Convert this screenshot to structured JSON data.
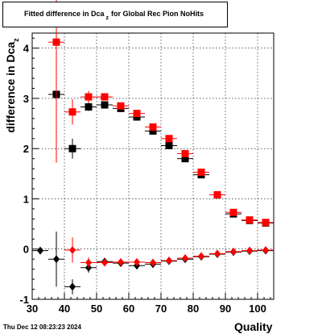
{
  "title": {
    "main": "Fitted difference in Dca",
    "sub": "z",
    "rest": "for Global Rec Pion NoHits"
  },
  "datestamp": "Thu Dec 12 08:23:23 2024",
  "axes": {
    "xlabel": "Quality",
    "ylabel_main": "difference in Dca",
    "ylabel_sub": "z"
  },
  "colors": {
    "red": "#ff0000",
    "black": "#000000"
  },
  "chart_data": {
    "type": "scatter",
    "xlim": [
      30,
      105
    ],
    "ylim": [
      -1,
      4.3
    ],
    "xticks": [
      30,
      40,
      50,
      60,
      70,
      80,
      90,
      100
    ],
    "yticks": [
      -1,
      0,
      1,
      2,
      3,
      4
    ],
    "grid": true,
    "series": [
      {
        "marker": "square",
        "color": "#000000",
        "points": [
          {
            "x": 37.5,
            "y": 3.08,
            "err": 0.05
          },
          {
            "x": 42.5,
            "y": 2.0,
            "err": 0.2
          },
          {
            "x": 47.5,
            "y": 2.83,
            "err": 0.08
          },
          {
            "x": 52.5,
            "y": 2.87,
            "err": 0.05
          },
          {
            "x": 57.5,
            "y": 2.8,
            "err": 0.04
          },
          {
            "x": 62.5,
            "y": 2.63,
            "err": 0.04
          },
          {
            "x": 67.5,
            "y": 2.35,
            "err": 0.03
          },
          {
            "x": 72.5,
            "y": 2.06,
            "err": 0.03
          },
          {
            "x": 77.5,
            "y": 1.8,
            "err": 0.03
          },
          {
            "x": 82.5,
            "y": 1.48,
            "err": 0.02
          },
          {
            "x": 87.5,
            "y": 1.08,
            "err": 0.02
          },
          {
            "x": 92.5,
            "y": 0.7,
            "err": 0.02
          },
          {
            "x": 97.5,
            "y": 0.57,
            "err": 0.02
          },
          {
            "x": 102.5,
            "y": 0.52,
            "err": 0.02
          }
        ]
      },
      {
        "marker": "square",
        "color": "#ff0000",
        "points": [
          {
            "x": 37.5,
            "y": 4.12,
            "err": 2.4
          },
          {
            "x": 42.5,
            "y": 2.73,
            "err": 0.25
          },
          {
            "x": 47.5,
            "y": 3.03,
            "err": 0.12
          },
          {
            "x": 52.5,
            "y": 3.03,
            "err": 0.05
          },
          {
            "x": 57.5,
            "y": 2.85,
            "err": 0.04
          },
          {
            "x": 62.5,
            "y": 2.7,
            "err": 0.04
          },
          {
            "x": 67.5,
            "y": 2.43,
            "err": 0.03
          },
          {
            "x": 72.5,
            "y": 2.2,
            "err": 0.03
          },
          {
            "x": 77.5,
            "y": 1.9,
            "err": 0.03
          },
          {
            "x": 82.5,
            "y": 1.53,
            "err": 0.02
          },
          {
            "x": 87.5,
            "y": 1.08,
            "err": 0.02
          },
          {
            "x": 92.5,
            "y": 0.73,
            "err": 0.02
          },
          {
            "x": 97.5,
            "y": 0.58,
            "err": 0.02
          },
          {
            "x": 102.5,
            "y": 0.53,
            "err": 0.02
          }
        ]
      },
      {
        "marker": "diamond",
        "color": "#000000",
        "points": [
          {
            "x": 32.5,
            "y": -0.03,
            "err": 0.05
          },
          {
            "x": 37.5,
            "y": -0.2,
            "err": 0.55
          },
          {
            "x": 42.5,
            "y": -0.75,
            "err": 0.15
          },
          {
            "x": 47.5,
            "y": -0.37,
            "err": 0.1
          },
          {
            "x": 52.5,
            "y": -0.25,
            "err": 0.05
          },
          {
            "x": 57.5,
            "y": -0.28,
            "err": 0.04
          },
          {
            "x": 62.5,
            "y": -0.33,
            "err": 0.04
          },
          {
            "x": 67.5,
            "y": -0.3,
            "err": 0.03
          },
          {
            "x": 72.5,
            "y": -0.24,
            "err": 0.03
          },
          {
            "x": 77.5,
            "y": -0.2,
            "err": 0.03
          },
          {
            "x": 82.5,
            "y": -0.15,
            "err": 0.02
          },
          {
            "x": 87.5,
            "y": -0.1,
            "err": 0.02
          },
          {
            "x": 92.5,
            "y": -0.06,
            "err": 0.02
          },
          {
            "x": 97.5,
            "y": -0.04,
            "err": 0.02
          },
          {
            "x": 102.5,
            "y": -0.03,
            "err": 0.02
          }
        ]
      },
      {
        "marker": "diamond",
        "color": "#ff0000",
        "points": [
          {
            "x": 42.5,
            "y": -0.02,
            "err": 0.25
          },
          {
            "x": 47.5,
            "y": -0.27,
            "err": 0.1
          },
          {
            "x": 52.5,
            "y": -0.27,
            "err": 0.05
          },
          {
            "x": 57.5,
            "y": -0.26,
            "err": 0.04
          },
          {
            "x": 62.5,
            "y": -0.26,
            "err": 0.04
          },
          {
            "x": 67.5,
            "y": -0.27,
            "err": 0.03
          },
          {
            "x": 72.5,
            "y": -0.23,
            "err": 0.03
          },
          {
            "x": 77.5,
            "y": -0.18,
            "err": 0.03
          },
          {
            "x": 82.5,
            "y": -0.14,
            "err": 0.02
          },
          {
            "x": 87.5,
            "y": -0.09,
            "err": 0.02
          },
          {
            "x": 92.5,
            "y": -0.05,
            "err": 0.02
          },
          {
            "x": 97.5,
            "y": -0.03,
            "err": 0.02
          },
          {
            "x": 102.5,
            "y": -0.02,
            "err": 0.02
          }
        ]
      }
    ]
  }
}
